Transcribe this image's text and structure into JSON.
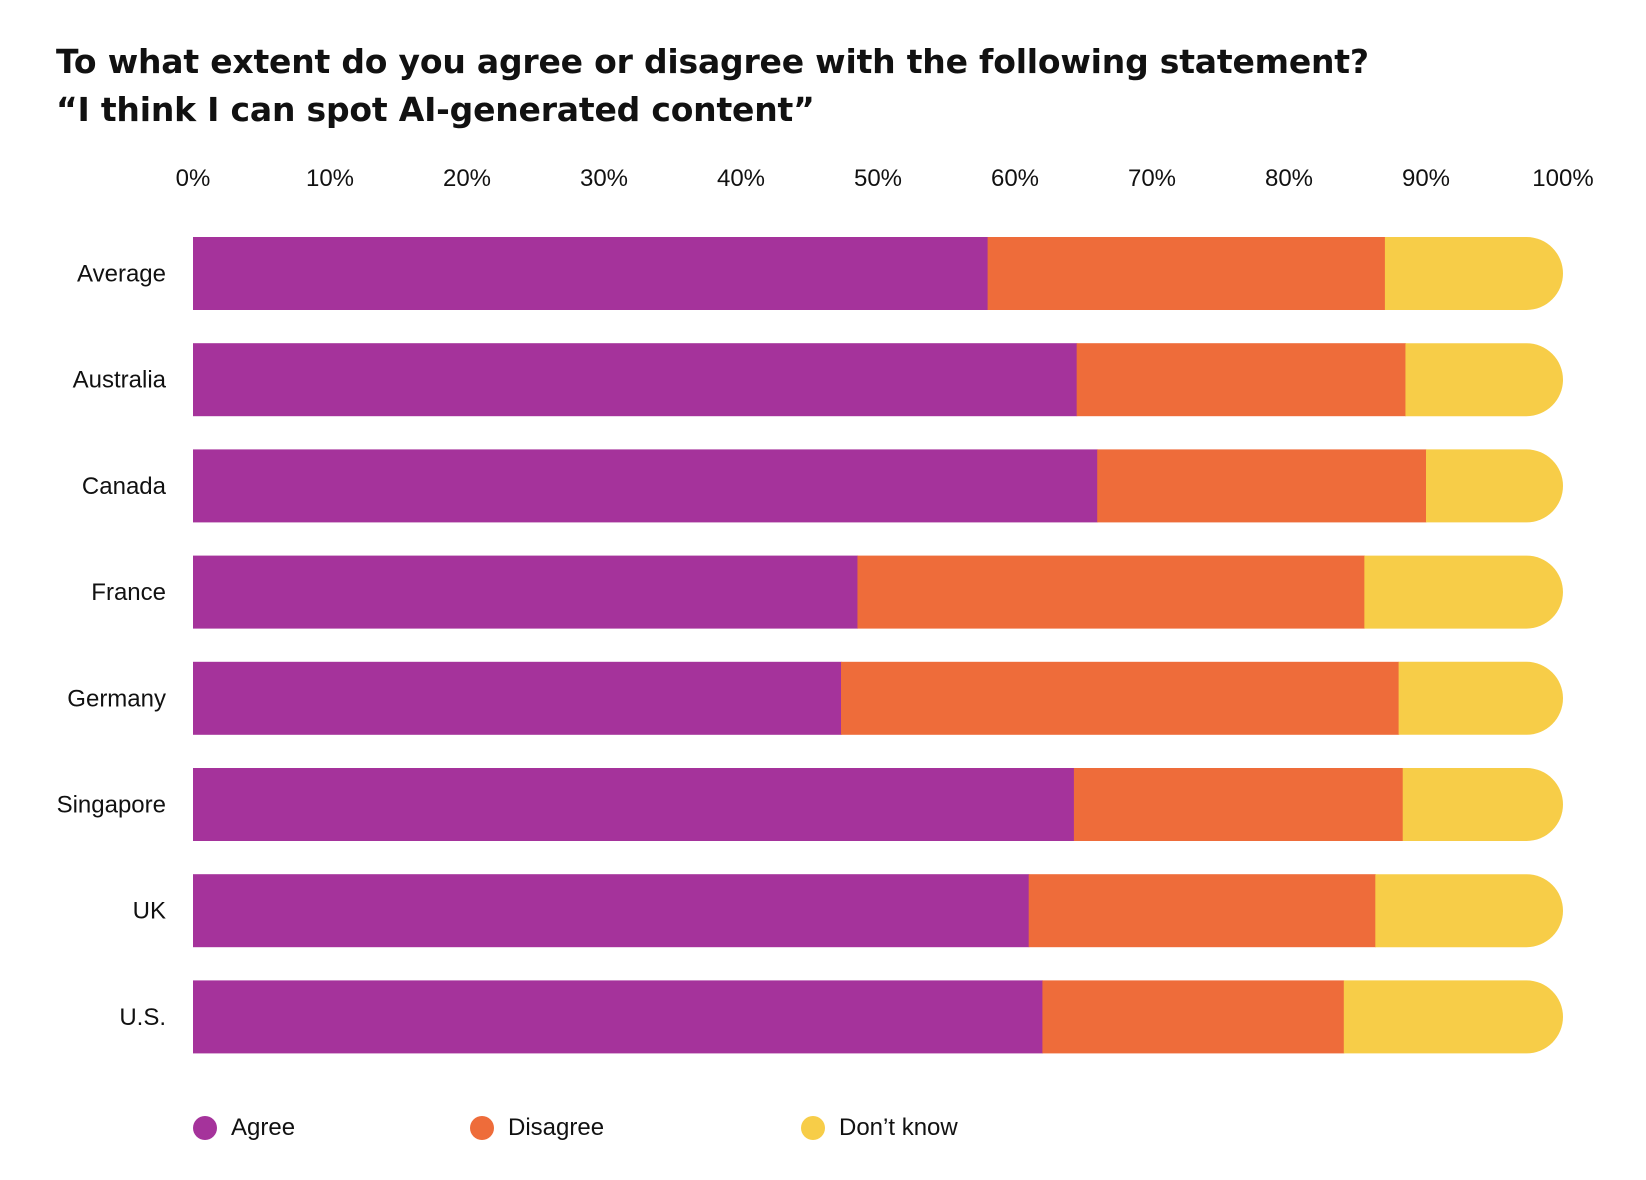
{
  "title": {
    "line1": "To what extent do you agree or disagree with the following statement?",
    "line2": "“I think I can spot AI-generated content”"
  },
  "chart_data": {
    "type": "bar",
    "orientation": "horizontal",
    "stacked": true,
    "title": "To what extent do you agree or disagree with the following statement? “I think I can spot AI-generated content”",
    "xlabel": "",
    "ylabel": "",
    "xlim": [
      0,
      100
    ],
    "x_ticks": [
      "0%",
      "10%",
      "20%",
      "30%",
      "40%",
      "50%",
      "60%",
      "70%",
      "80%",
      "90%",
      "100%"
    ],
    "x_axis_position": "top",
    "grid": false,
    "legend_position": "bottom-left",
    "categories": [
      "Average",
      "Australia",
      "Canada",
      "France",
      "Germany",
      "Singapore",
      "UK",
      "U.S."
    ],
    "series": [
      {
        "name": "Agree",
        "color": "#A5339B",
        "values": [
          58,
          64.5,
          66,
          48.5,
          47.3,
          64.3,
          61,
          62
        ]
      },
      {
        "name": "Disagree",
        "color": "#EE6C3A",
        "values": [
          29,
          24,
          24,
          37,
          40.7,
          24,
          25.3,
          22
        ]
      },
      {
        "name": "Don’t know",
        "color": "#F7CD48",
        "values": [
          13,
          11.5,
          10,
          14.5,
          12,
          11.7,
          13.7,
          16
        ]
      }
    ]
  },
  "legend": {
    "items": [
      {
        "label": "Agree",
        "color": "#A5339B"
      },
      {
        "label": "Disagree",
        "color": "#EE6C3A"
      },
      {
        "label": "Don’t know",
        "color": "#F7CD48"
      }
    ]
  }
}
